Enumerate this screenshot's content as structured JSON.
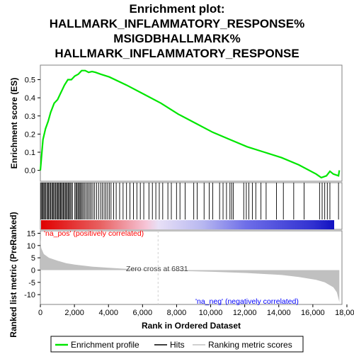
{
  "title_lines": [
    "Enrichment plot:",
    "HALLMARK_INFLAMMATORY_RESPONSE%",
    "MSIGDBHALLMARK%",
    "HALLMARK_INFLAMMATORY_RESPONSE"
  ],
  "colors": {
    "es_line": "#00e600",
    "hits": "#000000",
    "metric_fill": "#c0c0c0",
    "pos_text": "#ff0000",
    "neg_text": "#0000ff"
  },
  "chart_data": [
    {
      "type": "line",
      "name": "es-panel",
      "ylabel": "Enrichment score (ES)",
      "yticks": [
        "0.0",
        "0.1",
        "0.2",
        "0.3",
        "0.4",
        "0.5"
      ],
      "ylim": [
        -0.06,
        0.58
      ],
      "xlim": [
        0,
        17500
      ],
      "grid": false,
      "series": [
        {
          "name": "Enrichment profile",
          "x": [
            0,
            150,
            300,
            450,
            600,
            800,
            1000,
            1200,
            1400,
            1600,
            1800,
            2000,
            2200,
            2400,
            2600,
            2800,
            3000,
            3200,
            3500,
            4000,
            5000,
            6000,
            7000,
            8000,
            9000,
            10000,
            11000,
            12000,
            13000,
            14000,
            15000,
            16000,
            16300,
            16600,
            16800,
            17000,
            17300,
            17350
          ],
          "y": [
            0.0,
            0.17,
            0.23,
            0.27,
            0.32,
            0.37,
            0.39,
            0.43,
            0.47,
            0.5,
            0.5,
            0.52,
            0.53,
            0.55,
            0.55,
            0.54,
            0.545,
            0.54,
            0.53,
            0.515,
            0.47,
            0.42,
            0.37,
            0.31,
            0.26,
            0.21,
            0.17,
            0.13,
            0.1,
            0.07,
            0.03,
            -0.02,
            -0.04,
            -0.03,
            -0.005,
            -0.02,
            -0.03,
            0.0
          ]
        }
      ]
    },
    {
      "type": "line",
      "name": "metric-panel",
      "ylabel": "Ranked list metric (PreRanked)",
      "xlabel": "Rank in Ordered Dataset",
      "yticks": [
        "15",
        "10",
        "5",
        "0",
        "-5",
        "-10"
      ],
      "xticks": [
        "0",
        "2,000",
        "4,000",
        "6,000",
        "8,000",
        "10,000",
        "12,000",
        "14,000",
        "16,000",
        "18,000"
      ],
      "ylim": [
        -14,
        16
      ],
      "xlim": [
        0,
        17500
      ],
      "zero_cross": 6831,
      "series": [
        {
          "name": "Ranking metric scores",
          "x": [
            0,
            50,
            200,
            500,
            1000,
            1500,
            2000,
            3000,
            4000,
            5000,
            6000,
            6831,
            8000,
            10000,
            12000,
            14000,
            15000,
            16000,
            16500,
            17000,
            17200,
            17350
          ],
          "y": [
            13,
            9,
            6.5,
            5,
            3.8,
            2.8,
            2.2,
            1.4,
            0.9,
            0.5,
            0.2,
            0.0,
            -0.3,
            -0.7,
            -1.2,
            -2.0,
            -2.8,
            -4.0,
            -5.0,
            -7.0,
            -9.0,
            -13.0
          ]
        }
      ]
    }
  ],
  "hits_x": [
    40,
    90,
    140,
    200,
    250,
    300,
    370,
    430,
    480,
    540,
    600,
    660,
    720,
    770,
    830,
    890,
    950,
    1000,
    1060,
    1110,
    1170,
    1220,
    1280,
    1340,
    1390,
    1450,
    1510,
    1560,
    1620,
    1680,
    1730,
    1800,
    1860,
    2000,
    2060,
    2120,
    2180,
    2240,
    2300,
    2350,
    2420,
    2480,
    2560,
    2640,
    2720,
    2800,
    2880,
    2960,
    3050,
    3150,
    3260,
    3380,
    3500,
    3600,
    3700,
    3800,
    3900,
    4000,
    4100,
    4250,
    4400,
    4600,
    4800,
    5000,
    5200,
    5400,
    5600,
    5800,
    6000,
    6300,
    6500,
    6700,
    6900,
    7100,
    7400,
    7600,
    7900,
    8100,
    8400,
    8900,
    9100,
    9500,
    9800,
    10000,
    10400,
    10600,
    10800,
    11000,
    11100,
    11200,
    11800,
    11950,
    12100,
    12300,
    12500,
    12800,
    13100,
    13700,
    14100,
    14700,
    15300,
    16200,
    16350,
    16500,
    16650,
    16800,
    17300
  ],
  "annotations": {
    "pos_label": "'na_pos' (positively correlated)",
    "neg_label": "'na_neg' (negatively correlated)",
    "zero_cross": "Zero cross at 6831"
  },
  "legend": {
    "items": [
      {
        "label": "Enrichment profile",
        "icon": "green-line"
      },
      {
        "label": "Hits",
        "icon": "black-line"
      },
      {
        "label": "Ranking metric scores",
        "icon": "gray-line"
      }
    ]
  }
}
